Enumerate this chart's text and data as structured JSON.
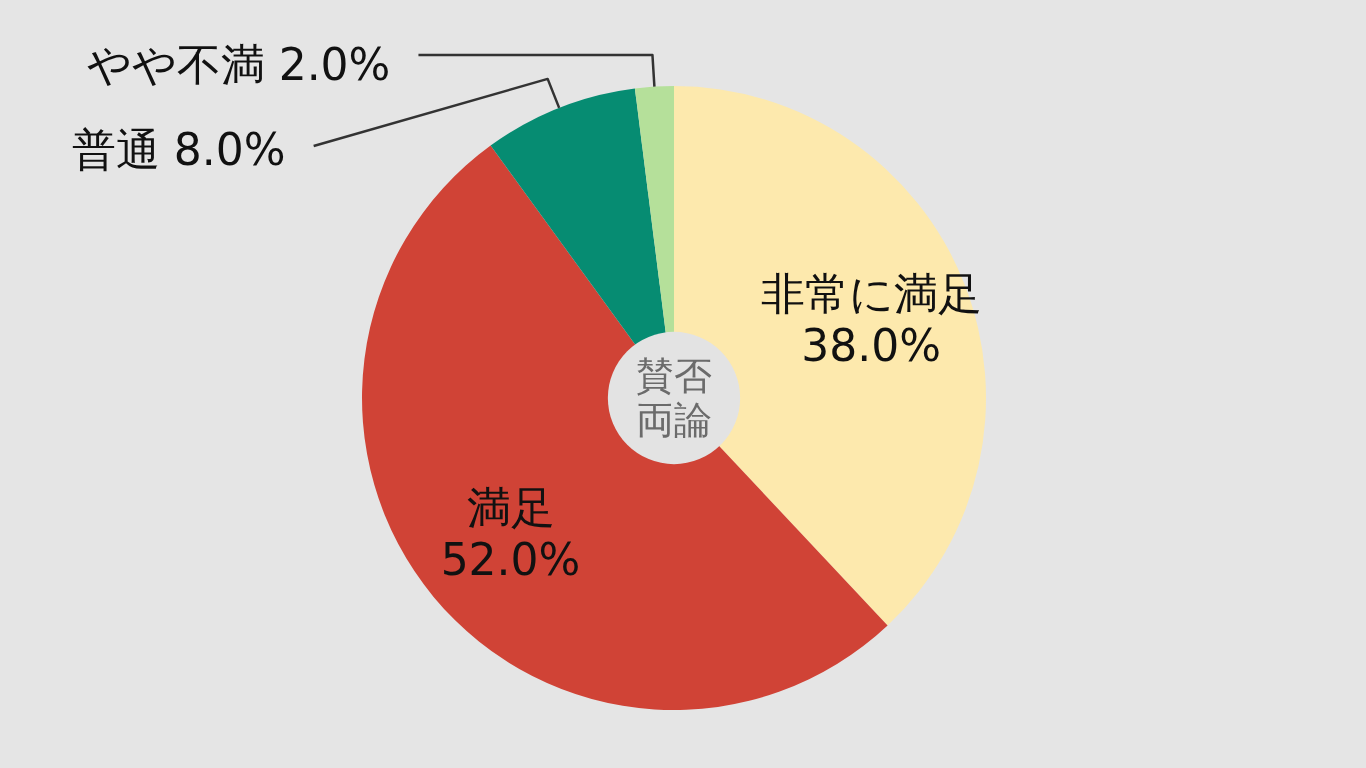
{
  "chart_data": {
    "type": "donut",
    "title": "賛否両論",
    "categories": [
      "非常に満足",
      "満足",
      "普通",
      "やや不満"
    ],
    "values": [
      38,
      52,
      8,
      2
    ],
    "colors": [
      "#fde9ad",
      "#d04336",
      "#068c72",
      "#b5e09a"
    ],
    "value_labels": [
      "38.0%",
      "52.0%",
      "8.0%",
      "2.0%"
    ]
  }
}
